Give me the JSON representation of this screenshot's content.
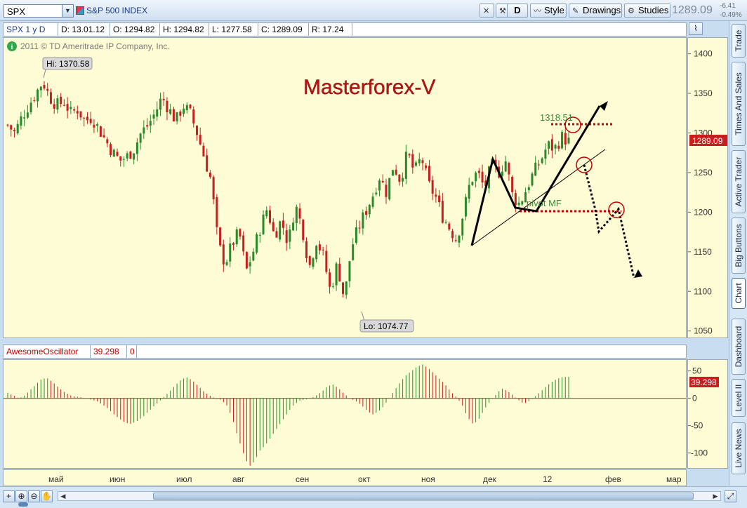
{
  "toolbar": {
    "symbol": "SPX",
    "symbol_desc": "S&P 500 INDEX",
    "period_btn": "D",
    "style_btn": "Style",
    "drawings_btn": "Drawings",
    "studies_btn": "Studies",
    "last_price": "1289.09",
    "net_change": "-6.41",
    "pct_change": "-0.49%"
  },
  "side_tabs": [
    "Trade",
    "Times And Sales",
    "Active Trader",
    "Big Buttons",
    "Chart",
    "Dashboard",
    "Level II",
    "Live News"
  ],
  "info": {
    "label": "SPX 1 y D",
    "date": "D: 13.01.12",
    "open": "O: 1294.82",
    "high": "H: 1294.82",
    "low": "L: 1277.58",
    "close": "C: 1289.09",
    "range": "R: 17.24",
    "copyright": "2011 © TD Ameritrade IP Company, Inc."
  },
  "annotations": {
    "watermark": "Masterforex-V",
    "hi_label": "Hi: 1370.58",
    "lo_label": "Lo: 1074.77",
    "level_label": "1318.51",
    "pivot_label": "pivot MF",
    "price_tag": "1289.09"
  },
  "oscillator": {
    "name": "AwesomeOscillator",
    "value": "39.298",
    "zero": "0",
    "tag": "39.298"
  },
  "colors": {
    "up": "#2a8a2a",
    "down": "#c81e1e",
    "background": "#fefcd4",
    "accent_red": "#c00000",
    "watermark": "#b81414"
  },
  "chart_data": [
    {
      "type": "candlestick",
      "title": "SPX 1 y D",
      "ylim": [
        1040,
        1420
      ],
      "y_ticks": [
        1050,
        1100,
        1150,
        1200,
        1250,
        1300,
        1350,
        1400
      ],
      "x_ticks": [
        "май",
        "июн",
        "июл",
        "авг",
        "сен",
        "окт",
        "ноя",
        "дек",
        "12",
        "фев",
        "мар"
      ],
      "high": 1370.58,
      "low": 1074.77,
      "last": 1289.09,
      "close_path": [
        1310,
        1300,
        1320,
        1335,
        1350,
        1365,
        1345,
        1335,
        1340,
        1325,
        1330,
        1315,
        1320,
        1305,
        1290,
        1275,
        1265,
        1270,
        1280,
        1300,
        1310,
        1325,
        1345,
        1330,
        1315,
        1335,
        1325,
        1300,
        1270,
        1240,
        1160,
        1135,
        1160,
        1175,
        1125,
        1150,
        1180,
        1205,
        1170,
        1190,
        1160,
        1210,
        1180,
        1130,
        1165,
        1145,
        1100,
        1135,
        1090,
        1155,
        1180,
        1200,
        1220,
        1245,
        1225,
        1260,
        1240,
        1275,
        1250,
        1270,
        1235,
        1220,
        1195,
        1180,
        1165,
        1200,
        1240,
        1250,
        1230,
        1260,
        1250,
        1265,
        1220,
        1210,
        1230,
        1250,
        1265,
        1285,
        1280,
        1295,
        1289
      ]
    },
    {
      "type": "bar",
      "title": "AwesomeOscillator",
      "ylim": [
        -130,
        70
      ],
      "y_ticks": [
        50,
        0,
        -50,
        -100
      ],
      "values": [
        10,
        5,
        0,
        5,
        15,
        25,
        35,
        37,
        30,
        20,
        12,
        6,
        3,
        2,
        0,
        -3,
        -6,
        -12,
        -20,
        -30,
        -38,
        -45,
        -47,
        -42,
        -35,
        -25,
        -15,
        -6,
        4,
        14,
        25,
        35,
        38,
        32,
        22,
        12,
        5,
        0,
        -3,
        -12,
        -35,
        -70,
        -100,
        -125,
        -115,
        -95,
        -85,
        -70,
        -55,
        -40,
        -25,
        -12,
        -5,
        -2,
        0,
        5,
        12,
        22,
        25,
        18,
        8,
        0,
        -5,
        -12,
        -22,
        -30,
        -25,
        -15,
        0,
        15,
        30,
        42,
        50,
        58,
        62,
        55,
        45,
        35,
        25,
        12,
        2,
        -12,
        -35,
        -48,
        -38,
        -20,
        -5,
        6,
        18,
        14,
        6,
        -3,
        -10,
        -5,
        3,
        12,
        22,
        30,
        36,
        39,
        39
      ]
    }
  ]
}
